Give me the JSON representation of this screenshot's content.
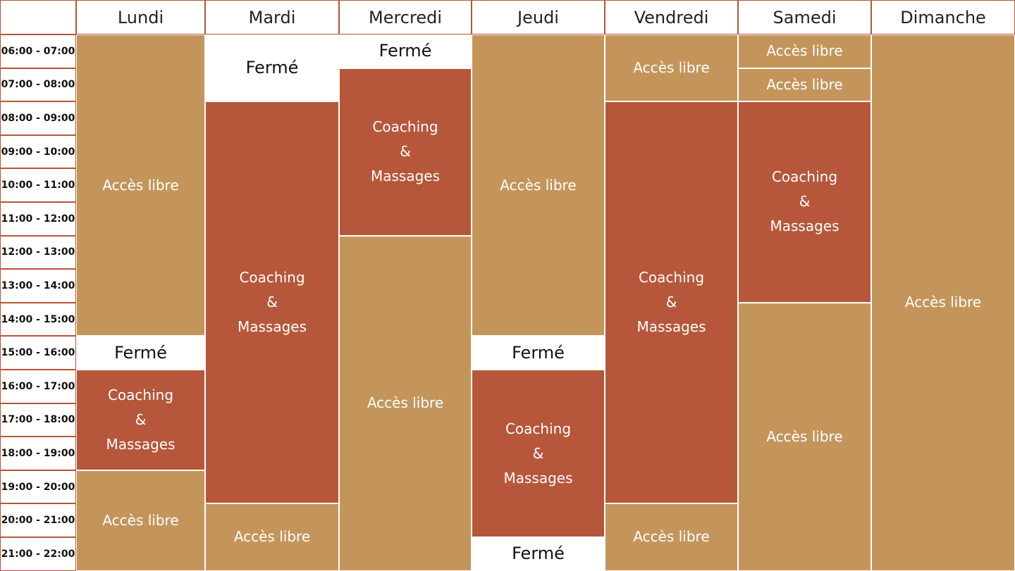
{
  "days": [
    "Lundi",
    "Mardi",
    "Mercredi",
    "Jeudi",
    "Vendredi",
    "Samedi",
    "Dimanche"
  ],
  "time_slots": [
    "06:00 - 07:00",
    "07:00 - 08:00",
    "08:00 - 09:00",
    "09:00 - 10:00",
    "10:00 - 11:00",
    "11:00 - 12:00",
    "12:00 - 13:00",
    "13:00 - 14:00",
    "14:00 - 15:00",
    "15:00 - 16:00",
    "16:00 - 17:00",
    "17:00 - 18:00",
    "18:00 - 19:00",
    "19:00 - 20:00",
    "20:00 - 21:00",
    "21:00 - 22:00"
  ],
  "colors": {
    "acces_libre": "#c4955b",
    "coaching_massages": "#b6573b",
    "ferme": "#ffffff",
    "border": "#b5553a"
  },
  "schedule": [
    [
      {
        "type": "libre",
        "start": 6,
        "end": 15,
        "lines": [
          "Accès libre"
        ]
      },
      {
        "type": "ferme",
        "start": 15,
        "end": 16,
        "lines": [
          "Fermé"
        ]
      },
      {
        "type": "coach",
        "start": 16,
        "end": 19,
        "lines": [
          "Coaching",
          "&",
          "Massages"
        ]
      },
      {
        "type": "libre",
        "start": 19,
        "end": 22,
        "lines": [
          "Accès libre"
        ]
      }
    ],
    [
      {
        "type": "ferme",
        "start": 6,
        "end": 8,
        "lines": [
          "Fermé"
        ]
      },
      {
        "type": "coach",
        "start": 8,
        "end": 20,
        "lines": [
          "Coaching",
          "&",
          "Massages"
        ]
      },
      {
        "type": "libre",
        "start": 20,
        "end": 22,
        "lines": [
          "Accès libre"
        ]
      }
    ],
    [
      {
        "type": "ferme",
        "start": 6,
        "end": 7,
        "lines": [
          "Fermé"
        ]
      },
      {
        "type": "coach",
        "start": 7,
        "end": 12,
        "lines": [
          "Coaching",
          "&",
          "Massages"
        ]
      },
      {
        "type": "libre",
        "start": 12,
        "end": 22,
        "lines": [
          "Accès libre"
        ]
      }
    ],
    [
      {
        "type": "libre",
        "start": 6,
        "end": 15,
        "lines": [
          "Accès libre"
        ]
      },
      {
        "type": "ferme",
        "start": 15,
        "end": 16,
        "lines": [
          "Fermé"
        ]
      },
      {
        "type": "coach",
        "start": 16,
        "end": 21,
        "lines": [
          "Coaching",
          "&",
          "Massages"
        ]
      },
      {
        "type": "ferme",
        "start": 21,
        "end": 22,
        "lines": [
          "Fermé"
        ]
      }
    ],
    [
      {
        "type": "libre",
        "start": 6,
        "end": 8,
        "lines": [
          "Accès libre"
        ]
      },
      {
        "type": "coach",
        "start": 8,
        "end": 20,
        "lines": [
          "Coaching",
          "&",
          "Massages"
        ]
      },
      {
        "type": "libre",
        "start": 20,
        "end": 22,
        "lines": [
          "Accès libre"
        ]
      }
    ],
    [
      {
        "type": "libre",
        "start": 6,
        "end": 7,
        "lines": [
          "Accès libre"
        ]
      },
      {
        "type": "libre",
        "start": 7,
        "end": 8,
        "lines": [
          "Accès libre"
        ]
      },
      {
        "type": "coach",
        "start": 8,
        "end": 14,
        "lines": [
          "Coaching",
          "&",
          "Massages"
        ]
      },
      {
        "type": "libre",
        "start": 14,
        "end": 22,
        "lines": [
          "Accès libre"
        ]
      }
    ],
    [
      {
        "type": "libre",
        "start": 6,
        "end": 22,
        "lines": [
          "Accès libre"
        ]
      }
    ]
  ]
}
